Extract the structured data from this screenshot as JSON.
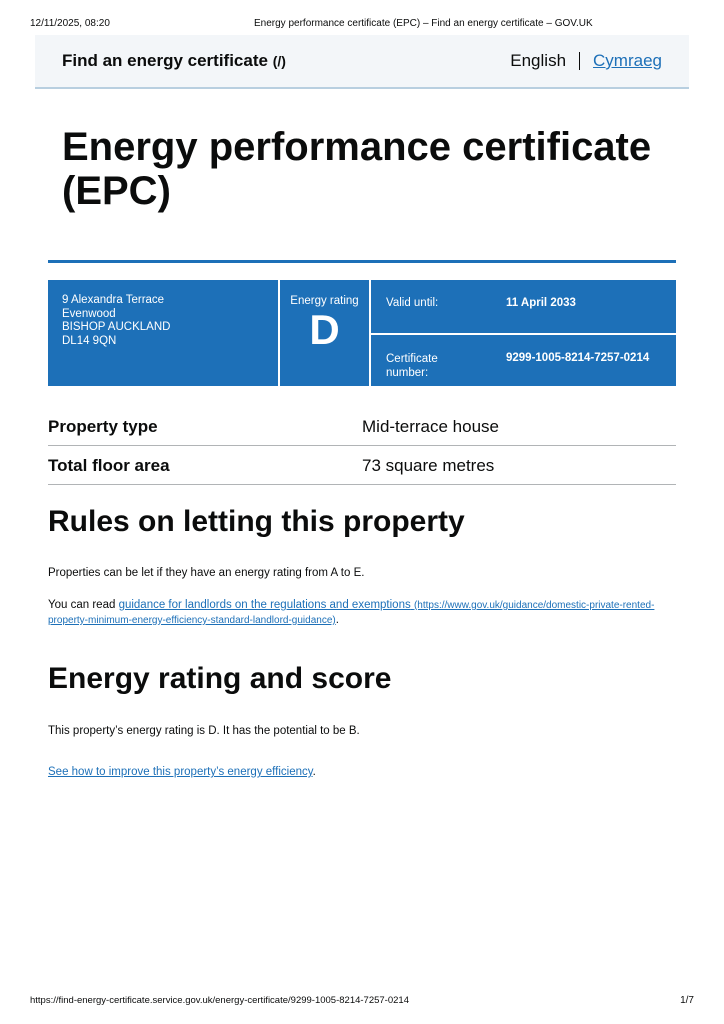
{
  "print_header": {
    "datetime": "12/11/2025, 08:20",
    "title": "Energy performance certificate (EPC) – Find an energy certificate – GOV.UK"
  },
  "header": {
    "service_name": "Find an energy certificate",
    "service_link": "(/)",
    "lang_current": "English",
    "lang_other": "Cymraeg"
  },
  "page_title": "Energy performance certificate (EPC)",
  "summary": {
    "address": [
      "9 Alexandra Terrace",
      "Evenwood",
      "BISHOP AUCKLAND",
      "DL14 9QN"
    ],
    "rating_label": "Energy rating",
    "rating": "D",
    "valid_label": "Valid until:",
    "valid_value": "11 April 2033",
    "cert_label": "Certificate number:",
    "cert_value": "9299-1005-8214-7257-0214",
    "color": "#1d70b8"
  },
  "details": [
    {
      "key": "Property type",
      "value": "Mid-terrace house"
    },
    {
      "key": "Total floor area",
      "value": "73 square metres"
    }
  ],
  "letting": {
    "heading": "Rules on letting this property",
    "p1": "Properties can be let if they have an energy rating from A to E.",
    "p2_prefix": "You can read ",
    "p2_link": "guidance for landlords on the regulations and exemptions",
    "p2_url": "(https://www.gov.uk/guidance/domestic-private-rented-property-minimum-energy-efficiency-standard-landlord-guidance)",
    "p2_suffix": "."
  },
  "rating_section": {
    "heading": "Energy rating and score",
    "p1": "This property’s energy rating is D. It has the potential to be B.",
    "link": "See how to improve this property’s energy efficiency",
    "link_suffix": "."
  },
  "print_footer": {
    "url": "https://find-energy-certificate.service.gov.uk/energy-certificate/9299-1005-8214-7257-0214",
    "page": "1/7"
  }
}
